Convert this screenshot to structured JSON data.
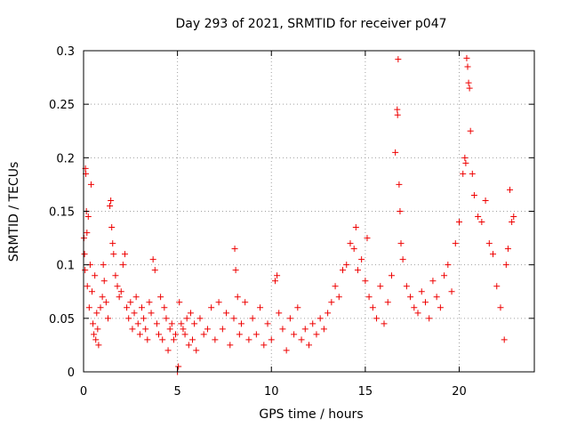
{
  "chart_data": {
    "type": "scatter",
    "title": "Day 293 of 2021, SRMTID for receiver p047",
    "xlabel": "GPS time / hours",
    "ylabel": "SRMTID / TECUs",
    "xlim": [
      0,
      24
    ],
    "ylim": [
      0,
      0.3
    ],
    "xticks": [
      0,
      5,
      10,
      15,
      20
    ],
    "xtick_labels": [
      "0",
      "5",
      "10",
      "15",
      "20"
    ],
    "yticks": [
      0,
      0.05,
      0.1,
      0.15,
      0.2,
      0.25,
      0.3
    ],
    "ytick_labels": [
      "0",
      "0.05",
      "0.1",
      "0.15",
      "0.2",
      "0.25",
      "0.3"
    ],
    "grid": true,
    "marker": "plus",
    "color": "#ee0000",
    "series": [
      {
        "name": "p047",
        "points": [
          [
            0.02,
            0.125
          ],
          [
            0.05,
            0.11
          ],
          [
            0.08,
            0.095
          ],
          [
            0.1,
            0.19
          ],
          [
            0.12,
            0.185
          ],
          [
            0.15,
            0.15
          ],
          [
            0.18,
            0.13
          ],
          [
            0.2,
            0.08
          ],
          [
            0.25,
            0.145
          ],
          [
            0.3,
            0.06
          ],
          [
            0.35,
            0.1
          ],
          [
            0.4,
            0.175
          ],
          [
            0.45,
            0.075
          ],
          [
            0.5,
            0.045
          ],
          [
            0.55,
            0.035
          ],
          [
            0.6,
            0.09
          ],
          [
            0.65,
            0.03
          ],
          [
            0.7,
            0.055
          ],
          [
            0.75,
            0.04
          ],
          [
            0.8,
            0.025
          ],
          [
            0.9,
            0.06
          ],
          [
            1.0,
            0.07
          ],
          [
            1.05,
            0.1
          ],
          [
            1.1,
            0.085
          ],
          [
            1.2,
            0.065
          ],
          [
            1.3,
            0.05
          ],
          [
            1.4,
            0.155
          ],
          [
            1.45,
            0.16
          ],
          [
            1.5,
            0.135
          ],
          [
            1.55,
            0.12
          ],
          [
            1.6,
            0.11
          ],
          [
            1.7,
            0.09
          ],
          [
            1.8,
            0.08
          ],
          [
            1.9,
            0.07
          ],
          [
            2.0,
            0.075
          ],
          [
            2.1,
            0.1
          ],
          [
            2.2,
            0.11
          ],
          [
            2.3,
            0.06
          ],
          [
            2.4,
            0.05
          ],
          [
            2.5,
            0.065
          ],
          [
            2.6,
            0.04
          ],
          [
            2.7,
            0.055
          ],
          [
            2.8,
            0.07
          ],
          [
            2.9,
            0.045
          ],
          [
            3.0,
            0.035
          ],
          [
            3.1,
            0.06
          ],
          [
            3.2,
            0.05
          ],
          [
            3.3,
            0.04
          ],
          [
            3.4,
            0.03
          ],
          [
            3.5,
            0.065
          ],
          [
            3.6,
            0.055
          ],
          [
            3.7,
            0.105
          ],
          [
            3.8,
            0.095
          ],
          [
            3.9,
            0.045
          ],
          [
            4.0,
            0.035
          ],
          [
            4.1,
            0.07
          ],
          [
            4.2,
            0.03
          ],
          [
            4.3,
            0.06
          ],
          [
            4.4,
            0.05
          ],
          [
            4.5,
            0.02
          ],
          [
            4.6,
            0.04
          ],
          [
            4.7,
            0.045
          ],
          [
            4.8,
            0.03
          ],
          [
            4.9,
            0.035
          ],
          [
            5.0,
            0.0
          ],
          [
            5.05,
            0.005
          ],
          [
            5.1,
            0.065
          ],
          [
            5.2,
            0.045
          ],
          [
            5.3,
            0.04
          ],
          [
            5.4,
            0.035
          ],
          [
            5.5,
            0.05
          ],
          [
            5.6,
            0.025
          ],
          [
            5.7,
            0.055
          ],
          [
            5.8,
            0.03
          ],
          [
            5.9,
            0.045
          ],
          [
            6.0,
            0.02
          ],
          [
            6.2,
            0.05
          ],
          [
            6.4,
            0.035
          ],
          [
            6.6,
            0.04
          ],
          [
            6.8,
            0.06
          ],
          [
            7.0,
            0.03
          ],
          [
            7.2,
            0.065
          ],
          [
            7.4,
            0.04
          ],
          [
            7.6,
            0.055
          ],
          [
            7.8,
            0.025
          ],
          [
            8.0,
            0.05
          ],
          [
            8.05,
            0.115
          ],
          [
            8.1,
            0.095
          ],
          [
            8.2,
            0.07
          ],
          [
            8.3,
            0.035
          ],
          [
            8.4,
            0.045
          ],
          [
            8.6,
            0.065
          ],
          [
            8.8,
            0.03
          ],
          [
            9.0,
            0.05
          ],
          [
            9.2,
            0.035
          ],
          [
            9.4,
            0.06
          ],
          [
            9.6,
            0.025
          ],
          [
            9.8,
            0.045
          ],
          [
            10.0,
            0.03
          ],
          [
            10.2,
            0.085
          ],
          [
            10.3,
            0.09
          ],
          [
            10.4,
            0.055
          ],
          [
            10.6,
            0.04
          ],
          [
            10.8,
            0.02
          ],
          [
            11.0,
            0.05
          ],
          [
            11.2,
            0.035
          ],
          [
            11.4,
            0.06
          ],
          [
            11.6,
            0.03
          ],
          [
            11.8,
            0.04
          ],
          [
            12.0,
            0.025
          ],
          [
            12.2,
            0.045
          ],
          [
            12.4,
            0.035
          ],
          [
            12.6,
            0.05
          ],
          [
            12.8,
            0.04
          ],
          [
            13.0,
            0.055
          ],
          [
            13.2,
            0.065
          ],
          [
            13.4,
            0.08
          ],
          [
            13.6,
            0.07
          ],
          [
            13.8,
            0.095
          ],
          [
            14.0,
            0.1
          ],
          [
            14.2,
            0.12
          ],
          [
            14.4,
            0.115
          ],
          [
            14.5,
            0.135
          ],
          [
            14.6,
            0.095
          ],
          [
            14.8,
            0.105
          ],
          [
            15.0,
            0.085
          ],
          [
            15.1,
            0.125
          ],
          [
            15.2,
            0.07
          ],
          [
            15.4,
            0.06
          ],
          [
            15.6,
            0.05
          ],
          [
            15.8,
            0.08
          ],
          [
            16.0,
            0.045
          ],
          [
            16.2,
            0.065
          ],
          [
            16.4,
            0.09
          ],
          [
            16.6,
            0.205
          ],
          [
            16.7,
            0.245
          ],
          [
            16.72,
            0.24
          ],
          [
            16.75,
            0.292
          ],
          [
            16.8,
            0.175
          ],
          [
            16.85,
            0.15
          ],
          [
            16.9,
            0.12
          ],
          [
            17.0,
            0.105
          ],
          [
            17.2,
            0.08
          ],
          [
            17.4,
            0.07
          ],
          [
            17.6,
            0.06
          ],
          [
            17.8,
            0.055
          ],
          [
            18.0,
            0.075
          ],
          [
            18.2,
            0.065
          ],
          [
            18.4,
            0.05
          ],
          [
            18.6,
            0.085
          ],
          [
            18.8,
            0.07
          ],
          [
            19.0,
            0.06
          ],
          [
            19.2,
            0.09
          ],
          [
            19.4,
            0.1
          ],
          [
            19.6,
            0.075
          ],
          [
            19.8,
            0.12
          ],
          [
            20.0,
            0.14
          ],
          [
            20.2,
            0.185
          ],
          [
            20.3,
            0.2
          ],
          [
            20.35,
            0.195
          ],
          [
            20.4,
            0.293
          ],
          [
            20.45,
            0.285
          ],
          [
            20.5,
            0.27
          ],
          [
            20.55,
            0.265
          ],
          [
            20.6,
            0.225
          ],
          [
            20.7,
            0.185
          ],
          [
            20.8,
            0.165
          ],
          [
            21.0,
            0.145
          ],
          [
            21.2,
            0.14
          ],
          [
            21.4,
            0.16
          ],
          [
            21.6,
            0.12
          ],
          [
            21.8,
            0.11
          ],
          [
            22.0,
            0.08
          ],
          [
            22.2,
            0.06
          ],
          [
            22.4,
            0.03
          ],
          [
            22.5,
            0.1
          ],
          [
            22.6,
            0.115
          ],
          [
            22.7,
            0.17
          ],
          [
            22.8,
            0.14
          ],
          [
            22.9,
            0.145
          ]
        ]
      }
    ]
  }
}
